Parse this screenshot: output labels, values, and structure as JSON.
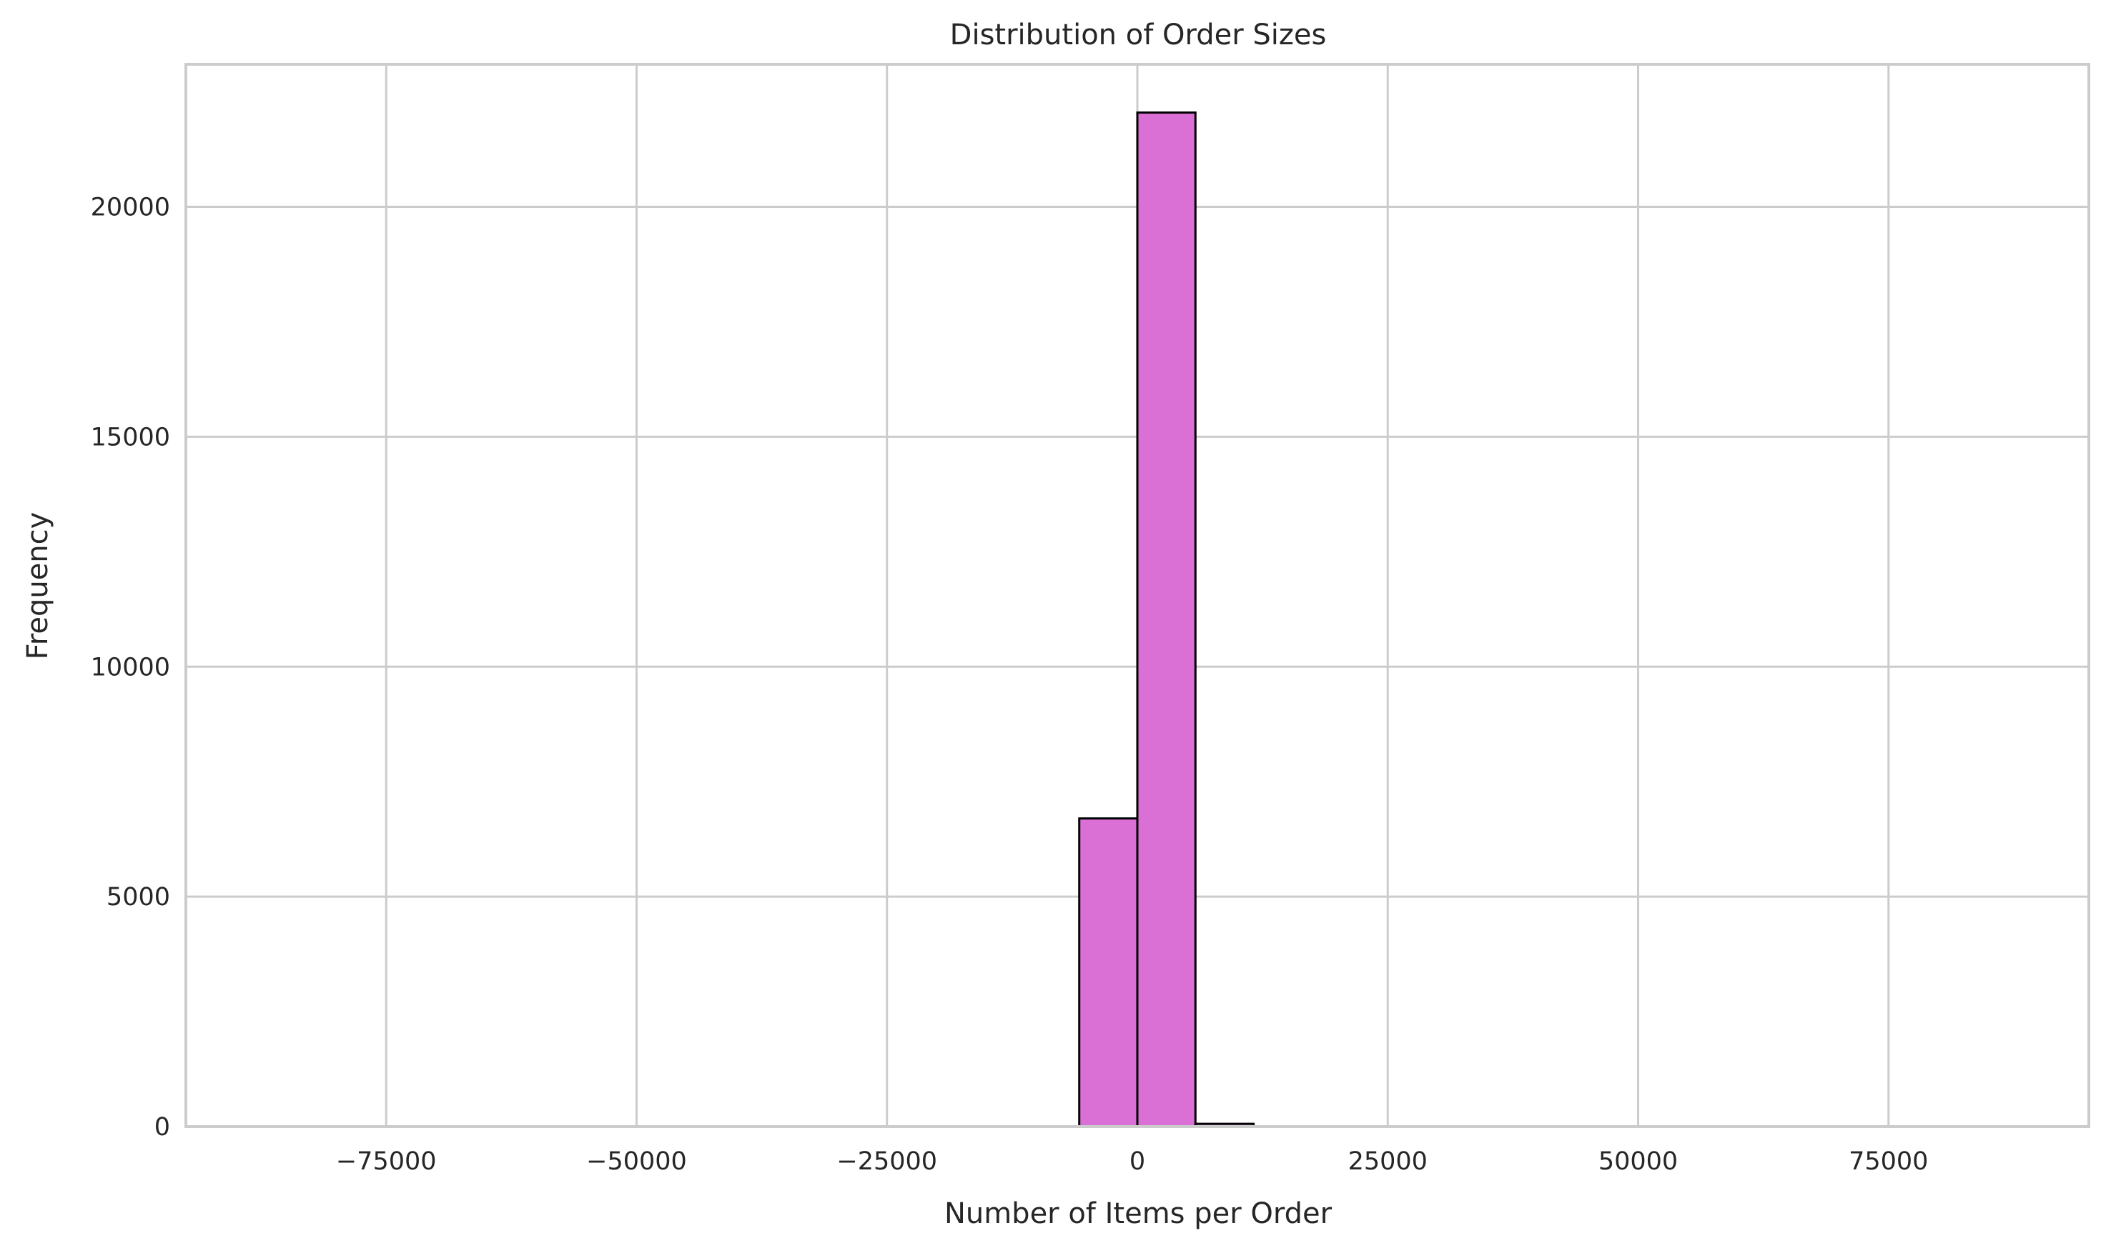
{
  "chart_data": {
    "type": "bar",
    "title": "Distribution of Order Sizes",
    "xlabel": "Number of Items per Order",
    "ylabel": "Frequency",
    "xlim": [
      -95000,
      95000
    ],
    "ylim": [
      0,
      23100
    ],
    "x_ticks": [
      -75000,
      -50000,
      -25000,
      0,
      25000,
      50000,
      75000
    ],
    "x_tick_labels": [
      "−75000",
      "−50000",
      "−25000",
      "0",
      "25000",
      "50000",
      "75000"
    ],
    "y_ticks": [
      0,
      5000,
      10000,
      15000,
      20000
    ],
    "y_tick_labels": [
      "0",
      "5000",
      "10000",
      "15000",
      "20000"
    ],
    "bins": [
      {
        "x0": -87000,
        "x1": -81200,
        "count": 2
      },
      {
        "x0": -81200,
        "x1": -75400,
        "count": 1
      },
      {
        "x0": -75400,
        "x1": -69600,
        "count": 1
      },
      {
        "x0": -69600,
        "x1": -63800,
        "count": 1
      },
      {
        "x0": -63800,
        "x1": -58000,
        "count": 1
      },
      {
        "x0": -58000,
        "x1": -52200,
        "count": 1
      },
      {
        "x0": -52200,
        "x1": -46400,
        "count": 1
      },
      {
        "x0": -46400,
        "x1": -40600,
        "count": 1
      },
      {
        "x0": -40600,
        "x1": -34800,
        "count": 1
      },
      {
        "x0": -34800,
        "x1": -29000,
        "count": 1
      },
      {
        "x0": -29000,
        "x1": -23200,
        "count": 1
      },
      {
        "x0": -23200,
        "x1": -17400,
        "count": 1
      },
      {
        "x0": -17400,
        "x1": -11600,
        "count": 1
      },
      {
        "x0": -11600,
        "x1": -5800,
        "count": 2
      },
      {
        "x0": -5800,
        "x1": 0,
        "count": 6700
      },
      {
        "x0": 0,
        "x1": 5800,
        "count": 22050
      },
      {
        "x0": 5800,
        "x1": 11600,
        "count": 60
      },
      {
        "x0": 11600,
        "x1": 17400,
        "count": 3
      },
      {
        "x0": 17400,
        "x1": 23200,
        "count": 1
      },
      {
        "x0": 23200,
        "x1": 29000,
        "count": 1
      },
      {
        "x0": 29000,
        "x1": 34800,
        "count": 1
      },
      {
        "x0": 34800,
        "x1": 40600,
        "count": 1
      },
      {
        "x0": 40600,
        "x1": 46400,
        "count": 1
      },
      {
        "x0": 46400,
        "x1": 52200,
        "count": 1
      },
      {
        "x0": 52200,
        "x1": 58000,
        "count": 1
      },
      {
        "x0": 58000,
        "x1": 63800,
        "count": 1
      },
      {
        "x0": 63800,
        "x1": 69600,
        "count": 1
      },
      {
        "x0": 69600,
        "x1": 75400,
        "count": 1
      },
      {
        "x0": 75400,
        "x1": 81200,
        "count": 1
      },
      {
        "x0": 81200,
        "x1": 87000,
        "count": 2
      }
    ],
    "grid": true,
    "bar_color": "#da70d6",
    "edge_color": "#000000",
    "grid_color": "#cccccc",
    "spine_color": "#cccccc",
    "text_color": "#262626"
  }
}
